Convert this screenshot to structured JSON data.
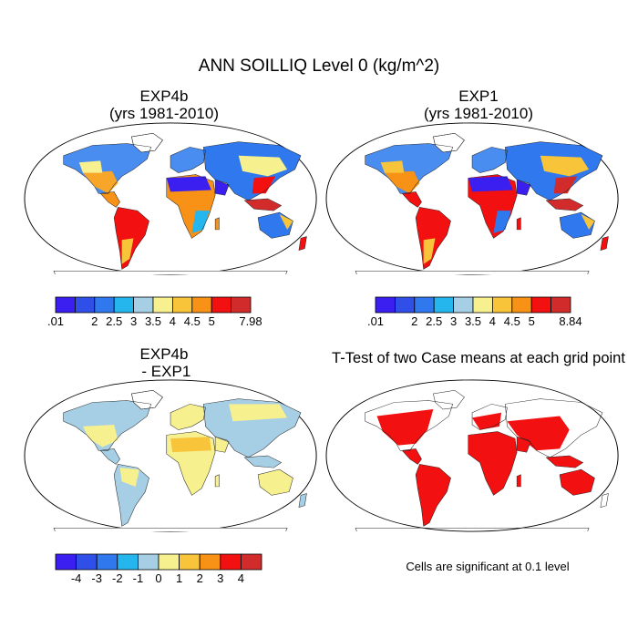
{
  "title": "ANN SOILLIQ Level 0 (kg/m^2)",
  "panels": [
    {
      "title_line1": "EXP4b",
      "title_line2": "(yrs 1981-2010)"
    },
    {
      "title_line1": "EXP1",
      "title_line2": "(yrs 1981-2010)"
    },
    {
      "title_line1": "EXP4b",
      "title_line2": " - EXP1"
    },
    {
      "title_line1": "T-Test of two Case means at each grid point",
      "title_line2": ""
    }
  ],
  "colorbars": [
    {
      "colors": [
        "#3a1ff0",
        "#2f4fe8",
        "#2f78ee",
        "#25b6ee",
        "#a6cfe6",
        "#f7f08f",
        "#f7c43a",
        "#f79216",
        "#f21010",
        "#d12b2b"
      ],
      "labels": [
        ".01",
        "",
        "2",
        "2.5",
        "3",
        "3.5",
        "4",
        "4.5",
        "5",
        "",
        "7.98"
      ]
    },
    {
      "colors": [
        "#3a1ff0",
        "#2f4fe8",
        "#2f78ee",
        "#25b6ee",
        "#a6cfe6",
        "#f7f08f",
        "#f7c43a",
        "#f79216",
        "#f21010",
        "#d12b2b"
      ],
      "labels": [
        ".01",
        "",
        "2",
        "2.5",
        "3",
        "3.5",
        "4",
        "4.5",
        "5",
        "",
        "8.84"
      ]
    },
    {
      "colors": [
        "#3a1ff0",
        "#2f4fe8",
        "#2f78ee",
        "#25b6ee",
        "#a6cfe6",
        "#f7f08f",
        "#f7c43a",
        "#f79216",
        "#f21010",
        "#d12b2b"
      ],
      "labels": [
        "",
        "-4",
        "-3",
        "-2",
        "-1",
        "0",
        "1",
        "2",
        "3",
        "4",
        ""
      ]
    }
  ],
  "significance_note": "Cells are significant at 0.1 level"
}
